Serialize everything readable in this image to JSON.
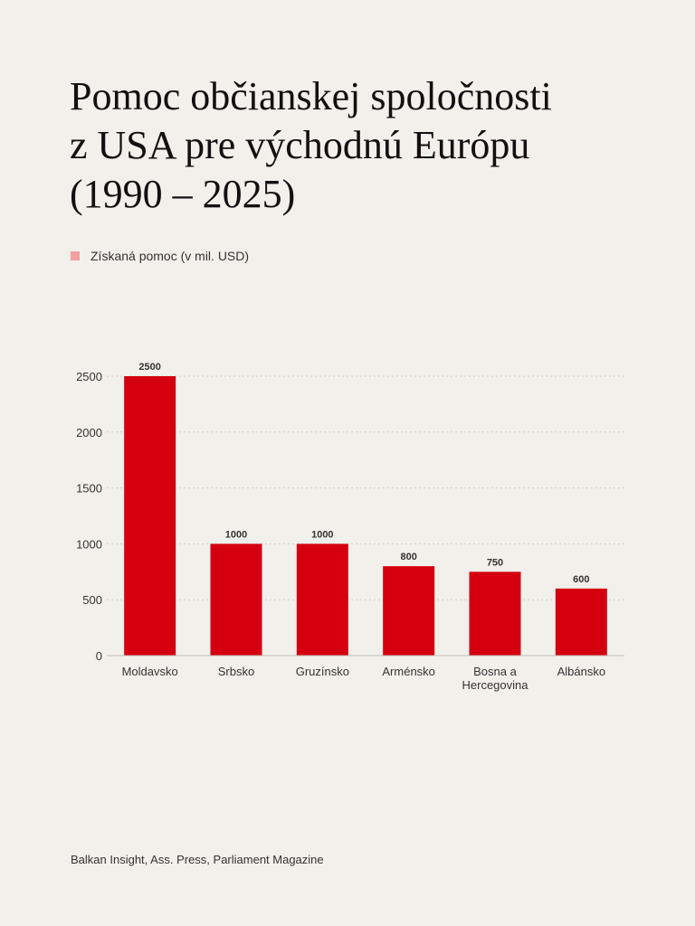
{
  "title": "Pomoc občianskej spoločnosti\nz USA pre východnú Európu\n(1990 – 2025)",
  "legend": {
    "label": "Získaná pomoc (v mil. USD)"
  },
  "source": "Balkan Insight, Ass. Press, Parliament Magazine",
  "colors": {
    "background": "#f2f0eb",
    "bar": "#d4000f",
    "legend_swatch": "#f2a0a0"
  },
  "chart_data": {
    "type": "bar",
    "title": "Pomoc občianskej spoločnosti z USA pre východnú Európu (1990 – 2025)",
    "categories": [
      "Moldavsko",
      "Srbsko",
      "Gruzínsko",
      "Arménsko",
      "Bosna a Hercegovina",
      "Albánsko"
    ],
    "category_lines": [
      [
        "Moldavsko"
      ],
      [
        "Srbsko"
      ],
      [
        "Gruzínsko"
      ],
      [
        "Arménsko"
      ],
      [
        "Bosna a",
        "Hercegovina"
      ],
      [
        "Albánsko"
      ]
    ],
    "series": [
      {
        "name": "Získaná pomoc (v mil. USD)",
        "values": [
          2500,
          1000,
          1000,
          800,
          750,
          600
        ]
      }
    ],
    "ylim": [
      0,
      2500
    ],
    "yticks": [
      0,
      500,
      1000,
      1500,
      2000,
      2500
    ],
    "grid": true,
    "legend_position": "top-left",
    "xlabel": "",
    "ylabel": ""
  }
}
